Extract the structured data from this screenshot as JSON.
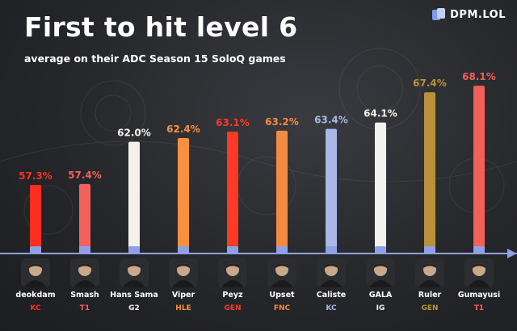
{
  "brand": "DPM.LOL",
  "chart_data": {
    "type": "bar",
    "title": "First to hit level 6",
    "subtitle": "average on their ADC Season 15 SoloQ games",
    "xlabel": "",
    "ylabel": "",
    "categories": [
      "deokdam",
      "Smash",
      "Hans Sama",
      "Viper",
      "Peyz",
      "Upset",
      "Caliste",
      "GALA",
      "Ruler",
      "Gumayusi"
    ],
    "values": [
      57.3,
      57.4,
      62.0,
      62.4,
      63.1,
      63.2,
      63.4,
      64.1,
      67.4,
      68.1
    ],
    "value_labels": [
      "57.3%",
      "57.4%",
      "62.0%",
      "62.4%",
      "63.1%",
      "63.2%",
      "63.4%",
      "64.1%",
      "67.4%",
      "68.1%"
    ],
    "ylim": [
      50,
      69
    ],
    "grid": false,
    "legend": "none",
    "bar_colors": [
      "#ff2d20",
      "#f4605a",
      "#f3f1ea",
      "#f7913f",
      "#ff3a24",
      "#f38a42",
      "#a9b8e6",
      "#f4f2ec",
      "#b7923a",
      "#f26058"
    ],
    "team_logos": [
      "KC",
      "T1",
      "G2",
      "HLE",
      "GEN",
      "FNC",
      "KC",
      "IG",
      "GEN",
      "T1"
    ],
    "accent_line": "#8ea1e6"
  }
}
